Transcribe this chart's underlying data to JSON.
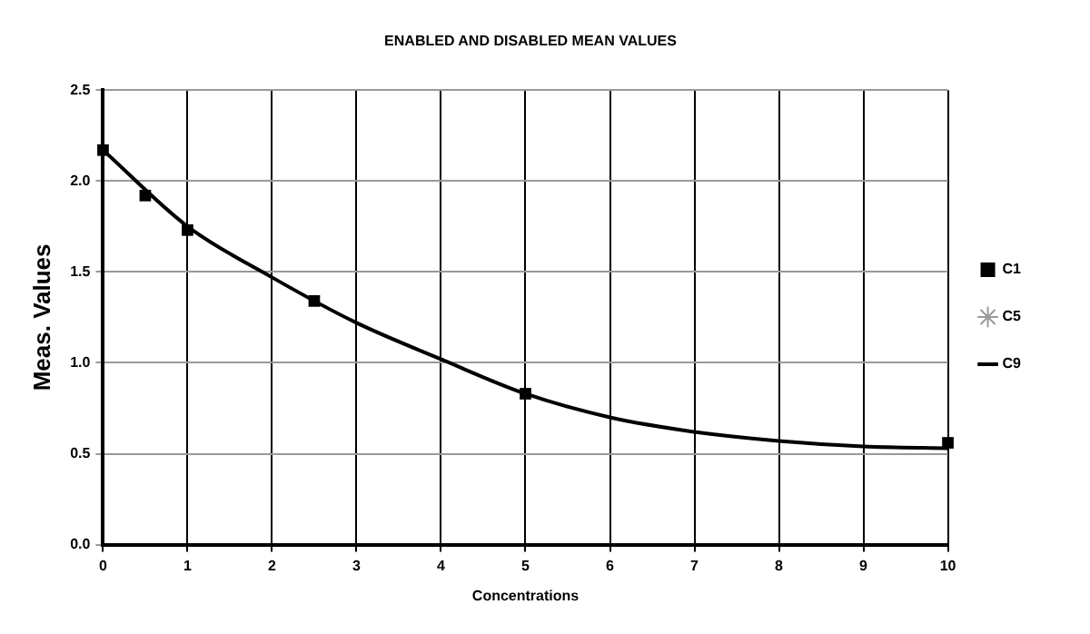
{
  "chart_data": {
    "type": "scatter",
    "title": "ENABLED AND DISABLED MEAN VALUES",
    "xlabel": "Concentrations",
    "ylabel": "Meas. Values",
    "x": [
      0,
      0.5,
      1,
      2.5,
      5,
      10
    ],
    "series": [
      {
        "name": "C1",
        "color": "#000000",
        "marker": "square",
        "values": [
          2.17,
          1.92,
          1.73,
          1.34,
          0.83,
          0.56
        ]
      },
      {
        "name": "C5",
        "color": "#999999",
        "marker": "star",
        "values": [
          null,
          null,
          null,
          null,
          null,
          null
        ]
      },
      {
        "name": "C9",
        "type": "line",
        "color": "#000000",
        "marker": "none",
        "line_style": "solid",
        "x": [
          0,
          1,
          2,
          3,
          4,
          5,
          6,
          7,
          8,
          9,
          10
        ],
        "values": [
          2.17,
          1.75,
          1.47,
          1.22,
          1.02,
          0.83,
          0.7,
          0.62,
          0.57,
          0.54,
          0.53
        ]
      }
    ],
    "xlim": [
      0,
      10
    ],
    "xticks": [
      0,
      1,
      2,
      3,
      4,
      5,
      6,
      7,
      8,
      9,
      10
    ],
    "ylim": [
      0,
      2.5
    ],
    "yticks": [
      {
        "value": 0,
        "label": "0.0"
      },
      0.5,
      {
        "value": 1,
        "label": "1.0"
      },
      1.5,
      {
        "value": 2,
        "label": "2.0"
      },
      2.5
    ],
    "grid": true,
    "legend": "right"
  }
}
